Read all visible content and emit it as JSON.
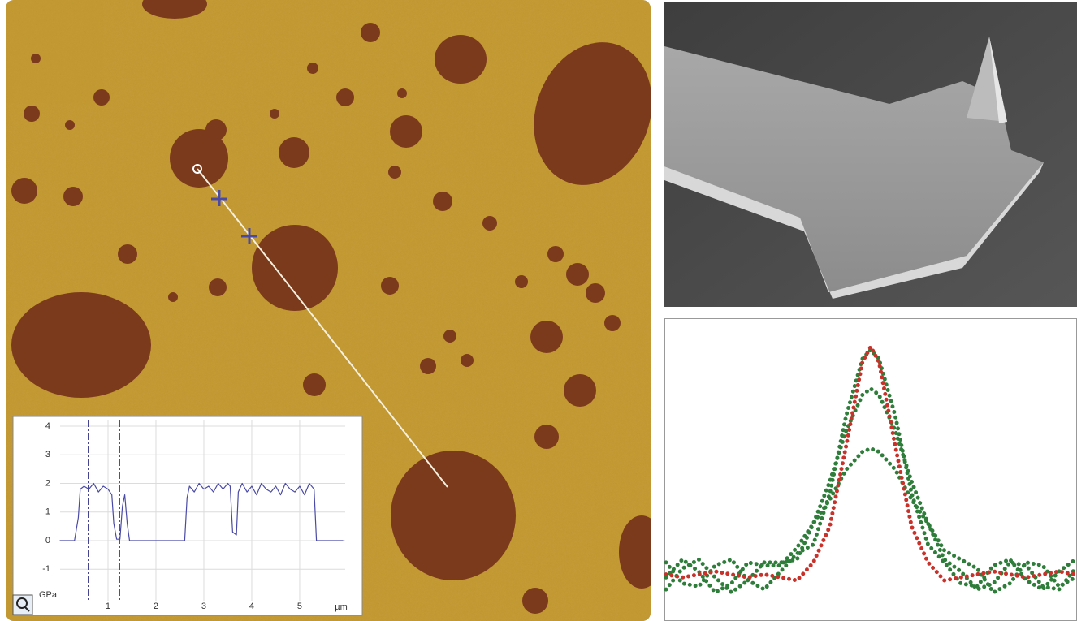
{
  "chart_data": [
    {
      "type": "line",
      "x": [
        0,
        0.3,
        0.38,
        0.42,
        0.5,
        0.6,
        0.7,
        0.8,
        0.9,
        1.0,
        1.08,
        1.12,
        1.18,
        1.25,
        1.3,
        1.35,
        1.4,
        1.45,
        2.6,
        2.65,
        2.7,
        2.8,
        2.9,
        3.0,
        3.1,
        3.2,
        3.3,
        3.4,
        3.5,
        3.55,
        3.6,
        3.68,
        3.72,
        3.8,
        3.9,
        4.0,
        4.1,
        4.2,
        4.3,
        4.4,
        4.5,
        4.6,
        4.7,
        4.8,
        4.9,
        5.0,
        5.1,
        5.2,
        5.3,
        5.35,
        5.9
      ],
      "values": [
        0,
        0,
        0.8,
        1.8,
        1.9,
        1.8,
        2.0,
        1.7,
        1.9,
        1.8,
        1.6,
        0.6,
        0.05,
        0.05,
        1.2,
        1.6,
        0.6,
        0,
        0,
        1.5,
        1.9,
        1.7,
        2.0,
        1.8,
        1.9,
        1.7,
        2.0,
        1.8,
        2.0,
        1.9,
        0.3,
        0.2,
        1.7,
        2.0,
        1.7,
        1.9,
        1.6,
        2.0,
        1.8,
        1.7,
        1.9,
        1.6,
        2.0,
        1.8,
        1.7,
        1.9,
        1.6,
        2.0,
        1.8,
        0,
        0
      ],
      "color": "#4a4aa6",
      "cursors": [
        0.59,
        1.24
      ],
      "xlabel": "µm",
      "ylabel": "GPa",
      "xlim": [
        0,
        5.95
      ],
      "ylim": [
        -2.1,
        4.2
      ],
      "xticks": [
        1,
        2,
        3,
        4,
        5
      ],
      "yticks": [
        -1,
        0,
        1,
        2,
        3,
        4
      ],
      "grid": true
    },
    {
      "type": "line",
      "linestyle": "dotted",
      "x": [
        0,
        4,
        8,
        12,
        16,
        20,
        24,
        28,
        32,
        36,
        40,
        44,
        48,
        50,
        52,
        56,
        60,
        64,
        68,
        72,
        76,
        80,
        84,
        88,
        92,
        96,
        100
      ],
      "series": [
        {
          "color": "#2e7d3a",
          "values": [
            19,
            12,
            11,
            18,
            20,
            13,
            10,
            16,
            22,
            25,
            42,
            68,
            87,
            90,
            87,
            68,
            42,
            25,
            19,
            12,
            11,
            18,
            20,
            13,
            10,
            16,
            20
          ]
        },
        {
          "color": "#2e7d3a",
          "values": [
            10,
            17,
            20,
            14,
            9,
            13,
            19,
            19,
            20,
            32,
            46,
            63,
            75,
            77,
            75,
            63,
            46,
            32,
            20,
            16,
            10,
            12,
            19,
            18,
            11,
            10,
            17
          ]
        },
        {
          "color": "#2e7d3a",
          "values": [
            14,
            20,
            16,
            9,
            12,
            19,
            18,
            18,
            24,
            32,
            40,
            50,
            56,
            57,
            56,
            50,
            40,
            32,
            23,
            20,
            17,
            9,
            12,
            19,
            18,
            11,
            14
          ]
        },
        {
          "color": "#c8322a",
          "values": [
            15,
            14,
            15,
            16,
            15,
            14,
            15,
            14,
            13,
            19,
            31,
            58,
            86,
            91,
            86,
            58,
            31,
            19,
            13,
            14,
            15,
            16,
            15,
            14,
            15,
            16,
            15
          ]
        }
      ],
      "xlim": [
        0,
        100
      ],
      "ylim": [
        0,
        100
      ]
    }
  ]
}
